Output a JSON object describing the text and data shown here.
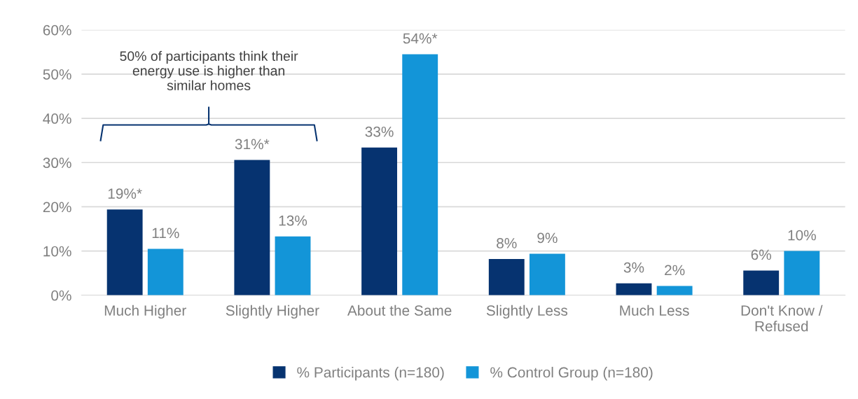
{
  "chart_data": {
    "type": "bar",
    "categories": [
      "Much Higher",
      "Slightly Higher",
      "About the Same",
      "Slightly Less",
      "Much Less",
      "Don't Know /\nRefused"
    ],
    "series": [
      {
        "name": "% Participants (n=180)",
        "color": "#063370",
        "values": [
          19.4,
          30.6,
          33.4,
          8.2,
          2.7,
          5.6
        ],
        "value_labels": [
          "19%*",
          "31%*",
          "33%",
          "8%",
          "3%",
          "6%"
        ]
      },
      {
        "name": "% Control Group (n=180)",
        "color": "#1395d8",
        "values": [
          10.5,
          13.3,
          54.5,
          9.4,
          2.1,
          10.0
        ],
        "value_labels": [
          "11%",
          "13%",
          "54%*",
          "9%",
          "2%",
          "10%"
        ]
      }
    ],
    "ylim": [
      0,
      60
    ],
    "yticks": [
      {
        "value": 0,
        "label": "0%"
      },
      {
        "value": 10,
        "label": "10%"
      },
      {
        "value": 20,
        "label": "20%"
      },
      {
        "value": 30,
        "label": "30%"
      },
      {
        "value": 40,
        "label": "40%"
      },
      {
        "value": 50,
        "label": "50%"
      },
      {
        "value": 60,
        "label": "60%"
      }
    ],
    "grid": "y",
    "legend": "bottom",
    "annotations": [
      "50% of participants think their\nenergy use is higher than\nsimilar homes"
    ]
  }
}
